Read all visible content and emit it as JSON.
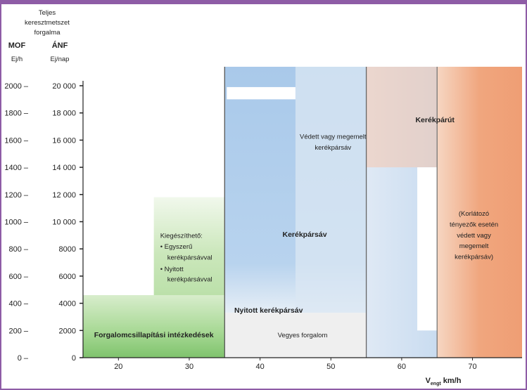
{
  "chart_data": {
    "type": "area",
    "title": "",
    "header": {
      "line1": "Teljes",
      "line2": "keresztmetszet",
      "line3": "forgalma",
      "mof": "MOF",
      "anf": "ÁNF",
      "mof_unit": "Ej/h",
      "anf_unit": "Ej/nap"
    },
    "xlabel_sub": "engt",
    "xlabel_main": "V",
    "xlabel_unit": " km/h",
    "xlim": [
      15,
      77
    ],
    "ylim": [
      0,
      2000
    ],
    "x_ticks": [
      {
        "value": 20,
        "label": "20"
      },
      {
        "value": 30,
        "label": "30"
      },
      {
        "value": 40,
        "label": "40"
      },
      {
        "value": 50,
        "label": "50"
      },
      {
        "value": 60,
        "label": "60"
      },
      {
        "value": 70,
        "label": "70"
      }
    ],
    "y_ticks": [
      {
        "value": 0,
        "mof": "0 –",
        "anf": "0"
      },
      {
        "value": 200,
        "mof": "200 –",
        "anf": "2000"
      },
      {
        "value": 400,
        "mof": "400 –",
        "anf": "4000"
      },
      {
        "value": 600,
        "mof": "600 –",
        "anf": "6000"
      },
      {
        "value": 800,
        "mof": "800 –",
        "anf": "8000"
      },
      {
        "value": 1000,
        "mof": "1000 –",
        "anf": "10 000"
      },
      {
        "value": 1200,
        "mof": "1200 –",
        "anf": "12 000"
      },
      {
        "value": 1400,
        "mof": "1400 –",
        "anf": "14 000"
      },
      {
        "value": 1600,
        "mof": "1600 –",
        "anf": "16 000"
      },
      {
        "value": 1800,
        "mof": "1800 –",
        "anf": "18 000"
      },
      {
        "value": 2000,
        "mof": "2000 –",
        "anf": "20 000"
      }
    ],
    "regions": [
      {
        "id": "traffic-calming",
        "x": [
          15,
          35
        ],
        "y": [
          0,
          460
        ],
        "color": "#8ccf7e"
      },
      {
        "id": "supplementable",
        "x": [
          25,
          35
        ],
        "y": [
          0,
          1180
        ],
        "color": "#b6dea4"
      },
      {
        "id": "mixed-traffic",
        "x": [
          35,
          55
        ],
        "y": [
          0,
          330
        ],
        "color": "#efefef"
      },
      {
        "id": "cycle-lane",
        "x": [
          35,
          55
        ],
        "y": [
          330,
          2100
        ],
        "color": "#b9d4ee"
      },
      {
        "id": "protected-lane",
        "x": [
          55,
          65
        ],
        "y": [
          0,
          2100
        ],
        "color": "#d9e6f3"
      },
      {
        "id": "cycle-path",
        "x": [
          55,
          77
        ],
        "y": [
          0,
          2100
        ],
        "color": "#f0a27a"
      }
    ],
    "labels": {
      "traffic_calming": "Forgalomcsillapítási intézkedések",
      "supplementable": "Kiegészíthető:",
      "simple_1": "• Egyszerű",
      "simple_2": "kerékpársávval",
      "open_1": "• Nyitott",
      "open_2": "kerékpársávval",
      "open_lane": "Nyitott kerékpársáv",
      "mixed": "Vegyes forgalom",
      "cycle_lane": "Kerékpársáv",
      "protected_1": "Védett vagy megemelt",
      "protected_2": "kerékpársáv",
      "cycle_path": "Kerékpárút",
      "restrict_1": "(Korlátozó",
      "restrict_2": "tényezők esetén",
      "restrict_3": "védett vagy",
      "restrict_4": "megemelt",
      "restrict_5": "kerékpársáv)"
    },
    "grid": false,
    "legend": "none"
  }
}
